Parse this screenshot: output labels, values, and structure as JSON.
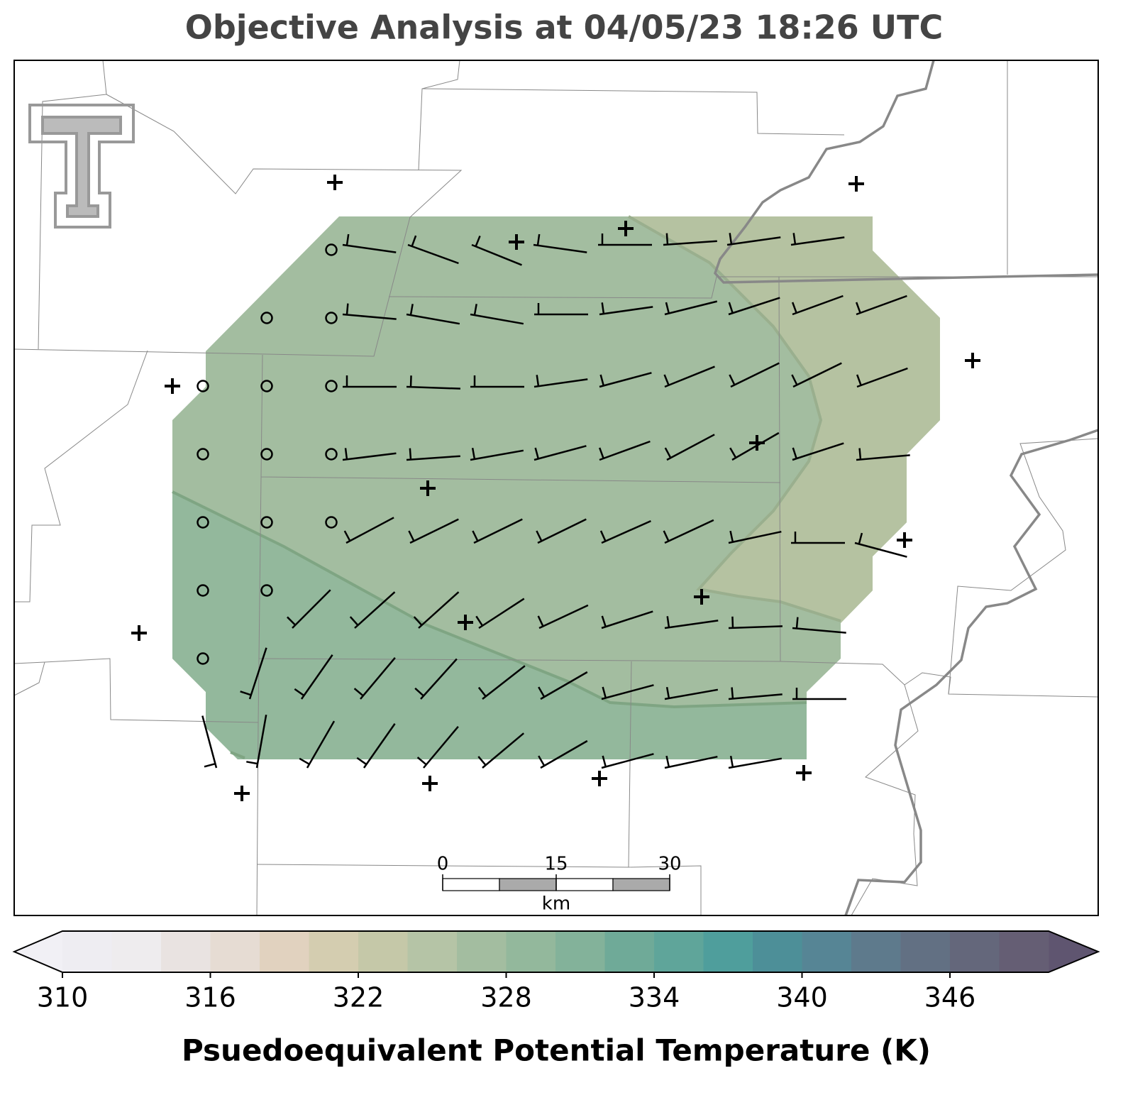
{
  "map": {
    "title": "Objective Analysis at 04/05/23 18:26 UTC",
    "colorbar": {
      "label": "Psuedoequivalent Potential Temperature (K)",
      "range": [
        310,
        350
      ],
      "ticks": [
        310,
        316,
        322,
        328,
        334,
        340,
        346
      ],
      "colors": [
        "#eeedf2",
        "#eeecee",
        "#e9e3e1",
        "#e6dcd3",
        "#e1d2bf",
        "#d4cdb0",
        "#c5c8a8",
        "#b5c4a6",
        "#a3bda0",
        "#93b89c",
        "#83b29a",
        "#6faa98",
        "#5fa59a",
        "#4f9e9c",
        "#4d8f98",
        "#568595",
        "#5e7a8c",
        "#627083",
        "#64677b",
        "#655e74"
      ],
      "under_color": "#f1f0f5",
      "over_color": "#5f5570"
    },
    "scale_bar": {
      "ticks": [
        0,
        15,
        30
      ],
      "unit": "km"
    }
  }
}
